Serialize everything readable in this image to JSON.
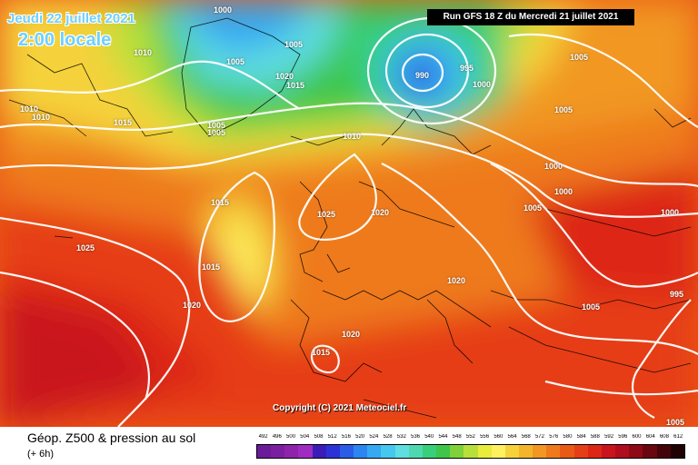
{
  "header": {
    "run_label": "Run GFS 18 Z du Mercredi 21 juillet 2021",
    "date_label": "Jeudi 22 juillet 2021",
    "time_label": "2:00 locale"
  },
  "map": {
    "copyright": "Copyright (C) 2021 Meteociel.fr",
    "pressure_labels": [
      "1000",
      "1005",
      "1010",
      "1015",
      "1020",
      "1025",
      "990",
      "995"
    ],
    "low_center": "990",
    "icons": [
      "coastline-lines",
      "isobar-lines"
    ]
  },
  "footer": {
    "title": "Géop. Z500 & pression au sol",
    "subtitle": "(+ 6h)"
  },
  "legend": {
    "values": [
      "492",
      "496",
      "500",
      "504",
      "508",
      "512",
      "516",
      "520",
      "524",
      "528",
      "532",
      "536",
      "540",
      "544",
      "548",
      "552",
      "556",
      "560",
      "564",
      "568",
      "572",
      "576",
      "580",
      "584",
      "588",
      "592",
      "596",
      "600",
      "604",
      "608",
      "612"
    ],
    "colors": [
      "#6a1b9a",
      "#7b1fa2",
      "#8e24aa",
      "#a02bc0",
      "#3a1db8",
      "#2b33d6",
      "#2a5ce8",
      "#2c86f0",
      "#36a9f2",
      "#45c7ef",
      "#5fdde0",
      "#4fd8b0",
      "#38cf7c",
      "#3ec64a",
      "#7fd23a",
      "#b8e03a",
      "#e8ec3a",
      "#fff060",
      "#f5d23a",
      "#f3b52c",
      "#f19722",
      "#ee7a1c",
      "#ea5a17",
      "#e63e16",
      "#dd2614",
      "#c9141d",
      "#b00d1e",
      "#8e0a16",
      "#6a0610",
      "#45030a",
      "#200205"
    ]
  }
}
